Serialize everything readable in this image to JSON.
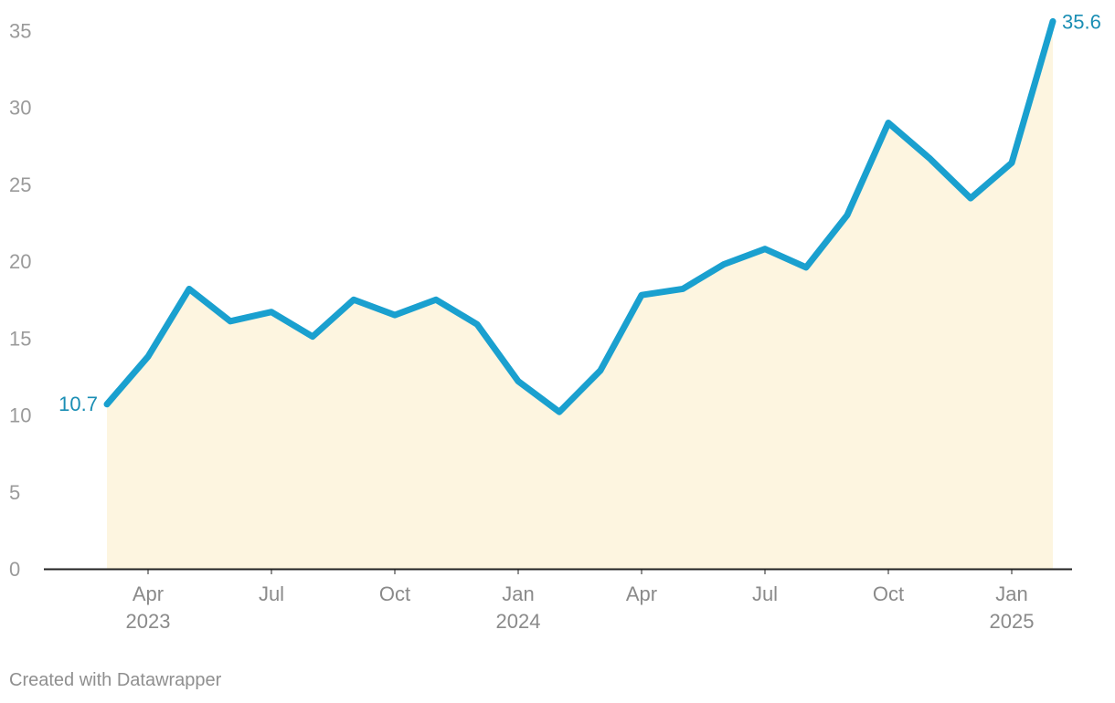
{
  "chart_data": {
    "type": "area",
    "x": [
      "2023-03",
      "2023-04",
      "2023-05",
      "2023-06",
      "2023-07",
      "2023-08",
      "2023-09",
      "2023-10",
      "2023-11",
      "2023-12",
      "2024-01",
      "2024-02",
      "2024-03",
      "2024-04",
      "2024-05",
      "2024-06",
      "2024-07",
      "2024-08",
      "2024-09",
      "2024-10",
      "2024-11",
      "2024-12",
      "2025-01",
      "2025-02"
    ],
    "values": [
      10.7,
      13.8,
      18.2,
      16.1,
      16.7,
      15.1,
      17.5,
      16.5,
      17.5,
      15.9,
      12.2,
      10.2,
      12.9,
      17.8,
      18.2,
      19.8,
      20.8,
      19.6,
      23.0,
      29.0,
      26.7,
      24.1,
      26.4,
      35.6
    ],
    "ylim": [
      0,
      36
    ],
    "yticks": [
      0,
      5,
      10,
      15,
      20,
      25,
      30,
      35
    ],
    "xticks": [
      {
        "date": "2023-04",
        "label": "Apr",
        "year": "2023"
      },
      {
        "date": "2023-07",
        "label": "Jul",
        "year": ""
      },
      {
        "date": "2023-10",
        "label": "Oct",
        "year": ""
      },
      {
        "date": "2024-01",
        "label": "Jan",
        "year": "2024"
      },
      {
        "date": "2024-04",
        "label": "Apr",
        "year": ""
      },
      {
        "date": "2024-07",
        "label": "Jul",
        "year": ""
      },
      {
        "date": "2024-10",
        "label": "Oct",
        "year": ""
      },
      {
        "date": "2025-01",
        "label": "Jan",
        "year": "2025"
      }
    ],
    "data_labels": {
      "first": "10.7",
      "last": "35.6"
    },
    "title": "",
    "xlabel": "",
    "ylabel": "",
    "grid": false,
    "colors": {
      "line": "#1aa0cf",
      "area": "#fdf5e0",
      "label": "#1a8eb4",
      "axis": "#222222"
    }
  },
  "footer": {
    "credit": "Created with Datawrapper"
  }
}
